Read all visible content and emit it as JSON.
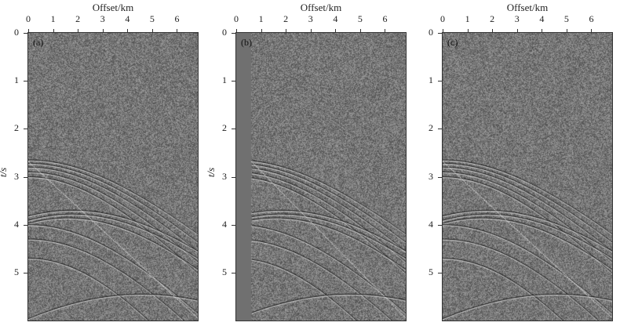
{
  "chart_data": [
    {
      "type": "heatmap",
      "panel_label": "(a)",
      "xlabel": "Offset/km",
      "ylabel": "t/s",
      "xticks": [
        "0",
        "1",
        "2",
        "3",
        "4",
        "5",
        "6"
      ],
      "yticks": [
        "0",
        "1",
        "2",
        "3",
        "4",
        "5"
      ],
      "xlim": [
        0,
        6.84
      ],
      "ylim": [
        6.0,
        0
      ],
      "colormap": "gray",
      "muted_near_offset": false
    },
    {
      "type": "heatmap",
      "panel_label": "(b)",
      "xlabel": "Offset/km",
      "ylabel": "t/s",
      "xticks": [
        "0",
        "1",
        "2",
        "3",
        "4",
        "5",
        "6"
      ],
      "yticks": [
        "0",
        "1",
        "2",
        "3",
        "4",
        "5"
      ],
      "xlim": [
        0,
        6.84
      ],
      "ylim": [
        6.0,
        0
      ],
      "colormap": "gray",
      "muted_near_offset": true
    },
    {
      "type": "heatmap",
      "panel_label": "(c)",
      "xlabel": "Offset/km",
      "ylabel": "",
      "xticks": [
        "0",
        "1",
        "2",
        "3",
        "4",
        "5",
        "6"
      ],
      "yticks": [
        "0",
        "1",
        "2",
        "3",
        "4",
        "5"
      ],
      "xlim": [
        0,
        6.84
      ],
      "ylim": [
        6.0,
        0
      ],
      "colormap": "gray",
      "muted_near_offset": false
    }
  ]
}
